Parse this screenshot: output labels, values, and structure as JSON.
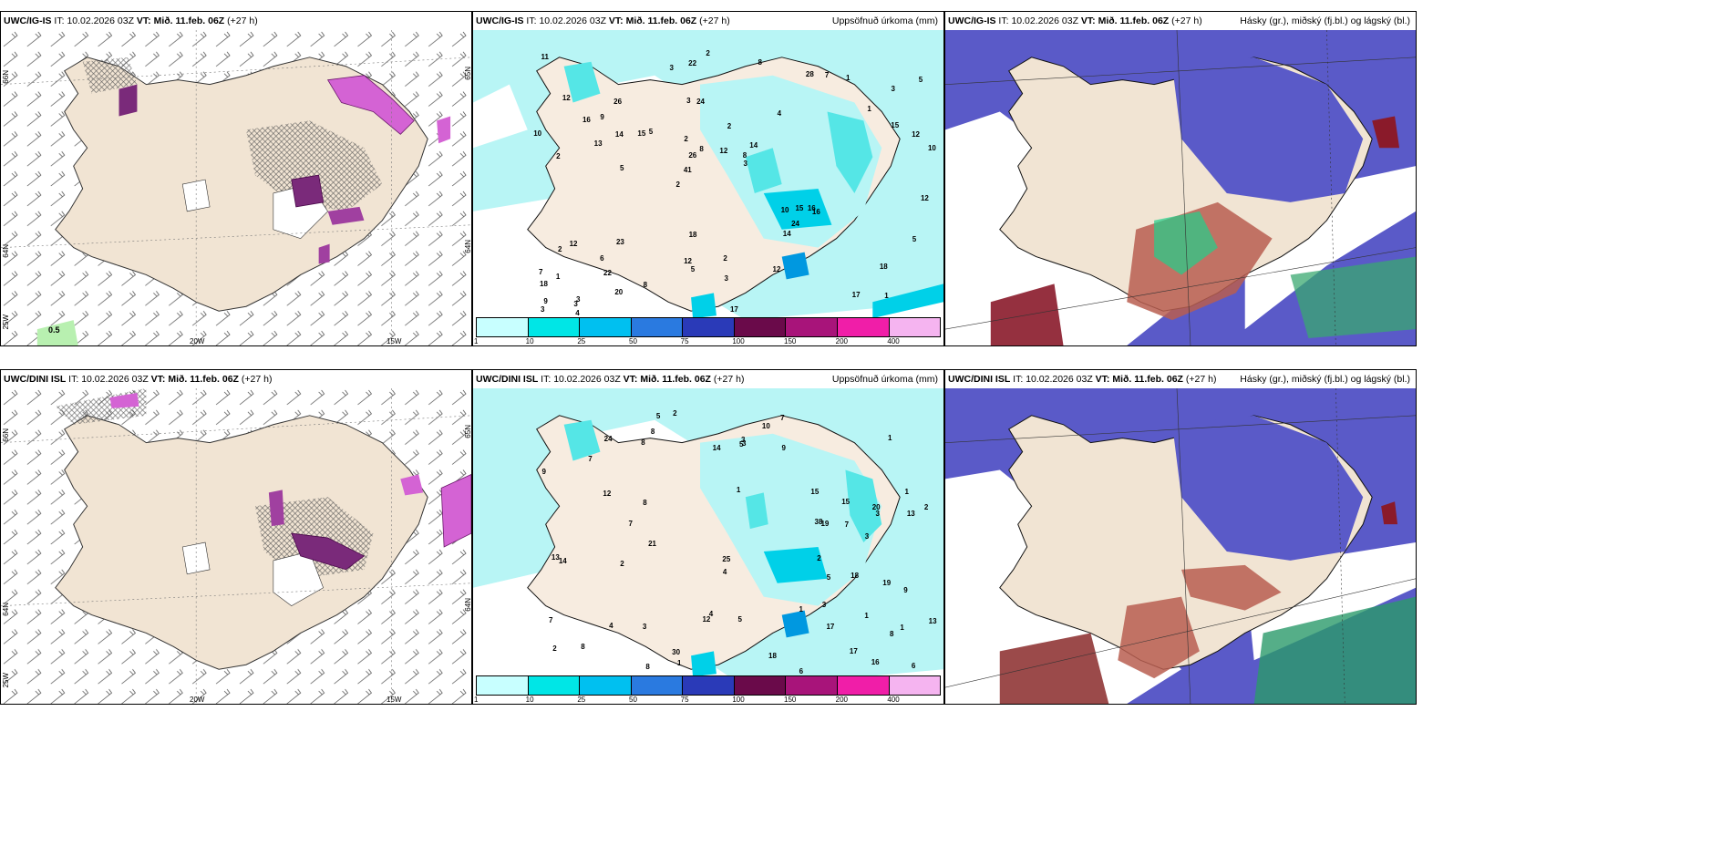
{
  "rows": [
    {
      "model": "UWC/IG-IS",
      "it_label": "IT:",
      "it_value": "10.02.2026 03Z",
      "vt_label": "VT:",
      "vt_value": "Mið. 11.feb. 06Z",
      "lead": "(+27 h)",
      "left_value_label": "0.5"
    },
    {
      "model": "UWC/DINI ISL",
      "it_label": "IT:",
      "it_value": "10.02.2026 03Z",
      "vt_label": "VT:",
      "vt_value": "Mið. 11.feb. 06Z",
      "lead": "(+27 h)",
      "left_value_label": ""
    }
  ],
  "precip_title": "Uppsöfnuð úrkoma (mm)",
  "cloud_title": "Hásky (gr.), miðský (fj.bl.) og lágský (bl.)",
  "axis_labels": {
    "lat66": "66N",
    "lat64": "64N",
    "lat65": "65N",
    "lon25": "25W",
    "lon20": "20W",
    "lon15": "15W"
  },
  "colorbar": {
    "ticks": [
      "1",
      "10",
      "25",
      "50",
      "75",
      "100",
      "150",
      "200",
      "400"
    ],
    "colors": [
      "#c8ffff",
      "#00e6e6",
      "#00c0f0",
      "#2a7ae0",
      "#2a3ab8",
      "#6a0a4a",
      "#a8147a",
      "#f01ea8",
      "#f5b4f0"
    ]
  },
  "precip_numbers_top": [
    "1",
    "2",
    "3",
    "2",
    "4",
    "3",
    "3",
    "2",
    "12",
    "5",
    "18",
    "22",
    "24",
    "14",
    "16",
    "12",
    "22",
    "10",
    "10",
    "15",
    "41",
    "12",
    "26",
    "26",
    "28",
    "23",
    "17",
    "18",
    "16",
    "17",
    "15",
    "13",
    "14",
    "20",
    "12",
    "8",
    "9",
    "5",
    "3",
    "2",
    "1",
    "5",
    "24",
    "12",
    "6",
    "4",
    "3",
    "2",
    "1",
    "2",
    "5",
    "10",
    "9",
    "7",
    "3",
    "8",
    "3",
    "8",
    "5",
    "18",
    "8",
    "15",
    "14",
    "7",
    "11",
    "16",
    "12",
    "2",
    "3",
    "12",
    "1"
  ],
  "precip_numbers_bottom": [
    "1",
    "1",
    "1",
    "1",
    "2",
    "8",
    "20",
    "3",
    "1",
    "12",
    "13",
    "9",
    "3",
    "1",
    "7",
    "7",
    "8",
    "8",
    "4",
    "3",
    "13",
    "14",
    "18",
    "38",
    "30",
    "12",
    "10",
    "9",
    "15",
    "13",
    "2",
    "17",
    "8",
    "25",
    "19",
    "17",
    "19",
    "14",
    "16",
    "21",
    "18",
    "7",
    "5",
    "7",
    "9",
    "5",
    "8",
    "7",
    "8",
    "15",
    "4",
    "4",
    "3",
    "2",
    "1",
    "2",
    "5",
    "24",
    "6",
    "3",
    "2",
    "3",
    "6",
    "5"
  ]
}
